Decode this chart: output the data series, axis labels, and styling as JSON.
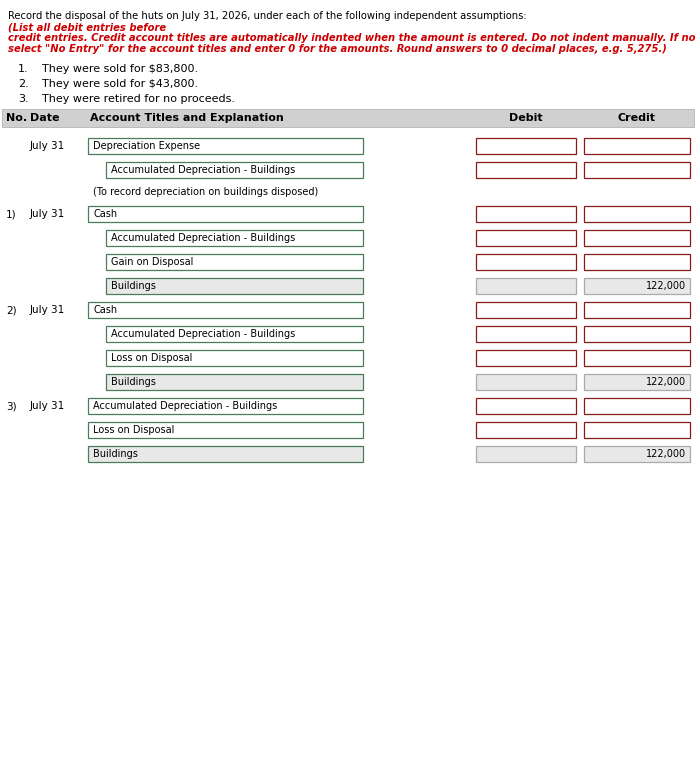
{
  "header_normal": "Record the disposal of the huts on July 31, 2026, under each of the following independent assumptions: ",
  "header_red": "(List all debit entries before credit entries. Credit account titles are automatically indented when the amount is entered. Do not indent manually. If no entry is required, select \"No Entry\" for the account titles and enter 0 for the amounts. Round answers to 0 decimal places, e.g. 5,275.)",
  "assumptions": [
    "They were sold for $83,800.",
    "They were sold for $43,800.",
    "They were retired for no proceeds."
  ],
  "col_header_bg": "#d0d0d0",
  "rows": [
    {
      "no": "",
      "date": "July 31",
      "account": "Depreciation Expense",
      "debit": "",
      "credit": "",
      "indent": false,
      "red_border": true,
      "filled": false
    },
    {
      "no": "",
      "date": "",
      "account": "Accumulated Depreciation - Buildings",
      "debit": "",
      "credit": "",
      "indent": true,
      "red_border": true,
      "filled": false
    },
    {
      "no": "",
      "date": "",
      "account": "(To record depreciation on buildings disposed)",
      "debit": null,
      "credit": null,
      "indent": false,
      "red_border": false,
      "filled": false
    },
    {
      "no": "1)",
      "date": "July 31",
      "account": "Cash",
      "debit": "",
      "credit": "",
      "indent": false,
      "red_border": true,
      "filled": false
    },
    {
      "no": "",
      "date": "",
      "account": "Accumulated Depreciation - Buildings",
      "debit": "",
      "credit": "",
      "indent": true,
      "red_border": true,
      "filled": false
    },
    {
      "no": "",
      "date": "",
      "account": "Gain on Disposal",
      "debit": "",
      "credit": "",
      "indent": true,
      "red_border": true,
      "filled": false
    },
    {
      "no": "",
      "date": "",
      "account": "Buildings",
      "debit": "",
      "credit": "122,000",
      "indent": true,
      "red_border": false,
      "filled": true
    },
    {
      "no": "2)",
      "date": "July 31",
      "account": "Cash",
      "debit": "",
      "credit": "",
      "indent": false,
      "red_border": true,
      "filled": false
    },
    {
      "no": "",
      "date": "",
      "account": "Accumulated Depreciation - Buildings",
      "debit": "",
      "credit": "",
      "indent": true,
      "red_border": true,
      "filled": false
    },
    {
      "no": "",
      "date": "",
      "account": "Loss on Disposal",
      "debit": "",
      "credit": "",
      "indent": true,
      "red_border": true,
      "filled": false
    },
    {
      "no": "",
      "date": "",
      "account": "Buildings",
      "debit": "",
      "credit": "122,000",
      "indent": true,
      "red_border": false,
      "filled": true
    },
    {
      "no": "3)",
      "date": "July 31",
      "account": "Accumulated Depreciation - Buildings",
      "debit": "",
      "credit": "",
      "indent": false,
      "red_border": true,
      "filled": false
    },
    {
      "no": "",
      "date": "",
      "account": "Loss on Disposal",
      "debit": "",
      "credit": "",
      "indent": false,
      "red_border": true,
      "filled": false
    },
    {
      "no": "",
      "date": "",
      "account": "Buildings",
      "debit": "",
      "credit": "122,000",
      "indent": false,
      "red_border": false,
      "filled": true
    }
  ],
  "bg_color": "#ffffff",
  "field_bg_white": "#ffffff",
  "field_bg_gray": "#e8e8e8",
  "acct_border_green": "#4a7c59",
  "border_red": "#8B1a1a",
  "red_text_color": "#cc0000",
  "col_header_text_color": "#000000"
}
